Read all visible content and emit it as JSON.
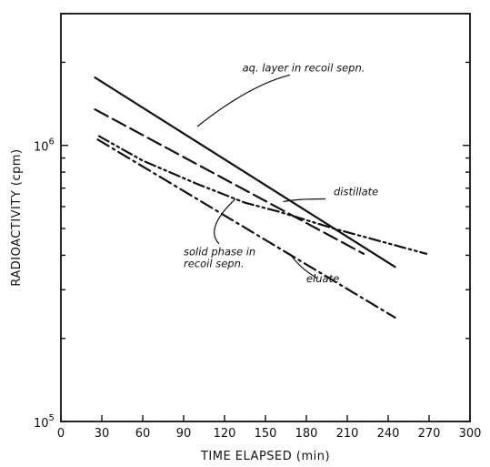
{
  "chart_data": {
    "type": "line",
    "xlabel": "TIME ELAPSED (min)",
    "ylabel": "RADIOACTIVITY (cpm)",
    "xlim": [
      0,
      300
    ],
    "ylim": [
      100000,
      3000000
    ],
    "yscale": "log",
    "x_ticks": [
      0,
      30,
      60,
      90,
      120,
      150,
      180,
      210,
      240,
      270,
      300
    ],
    "x_tick_labels": [
      "0",
      "30",
      "60",
      "90",
      "120",
      "150",
      "180",
      "210",
      "240",
      "270",
      "300"
    ],
    "y_tick_labels": [
      {
        "value": 1000000,
        "base": "10",
        "exp": "6"
      },
      {
        "value": 100000,
        "base": "10",
        "exp": "5"
      }
    ],
    "grid": false,
    "series": [
      {
        "name": "aq. layer in recoil sepn.",
        "style": "solid",
        "x": [
          25,
          245
        ],
        "y": [
          1760000,
          363000
        ]
      },
      {
        "name": "distillate",
        "style": "dashed",
        "x": [
          25,
          222
        ],
        "y": [
          1350000,
          405000
        ]
      },
      {
        "name": "solid phase in recoil sepn.",
        "style": "dash-dot-dot",
        "x": [
          28,
          60,
          100,
          135,
          160,
          200,
          268
        ],
        "y": [
          1080000,
          880000,
          725000,
          620000,
          575000,
          500000,
          405000
        ]
      },
      {
        "name": "eluate",
        "style": "dash-dot",
        "x": [
          27,
          245
        ],
        "y": [
          1050000,
          238000
        ]
      }
    ],
    "annotations": [
      {
        "series_index": 0,
        "lines": [
          "aq. layer in recoil sepn."
        ],
        "anchor": "right",
        "text_at": [
          178,
          1850000
        ],
        "leader": [
          [
            168,
            1800000
          ],
          [
            138,
            1650000
          ],
          [
            100,
            1170000
          ]
        ]
      },
      {
        "series_index": 1,
        "lines": [
          "distillate"
        ],
        "anchor": "left",
        "text_at": [
          200,
          660000
        ],
        "leader": [
          [
            194,
            640000
          ],
          [
            172,
            640000
          ],
          [
            163,
            625000
          ]
        ]
      },
      {
        "series_index": 2,
        "lines": [
          "solid phase in",
          "recoil sepn."
        ],
        "anchor": "left",
        "text_at": [
          90,
          400000
        ],
        "leader": [
          [
            116,
            440000
          ],
          [
            105,
            500000
          ],
          [
            128,
            640000
          ]
        ]
      },
      {
        "series_index": 3,
        "lines": [
          "eluate"
        ],
        "anchor": "left",
        "text_at": [
          180,
          320000
        ],
        "leader": [
          [
            188,
            330000
          ],
          [
            175,
            360000
          ],
          [
            168,
            405000
          ]
        ]
      }
    ]
  }
}
